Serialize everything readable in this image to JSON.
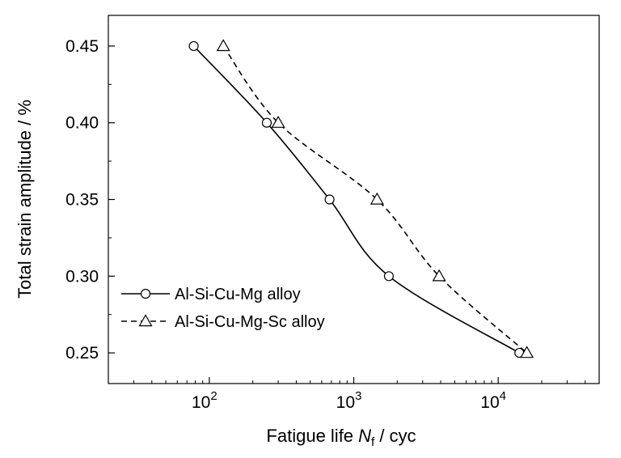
{
  "chart_data": {
    "type": "scatter",
    "x_scale": "log",
    "xlim": [
      20,
      50000
    ],
    "ylim": [
      0.23,
      0.47
    ],
    "x_major_ticks": [
      {
        "value": 100,
        "base": "10",
        "exp": "2"
      },
      {
        "value": 1000,
        "base": "10",
        "exp": "3"
      },
      {
        "value": 10000,
        "base": "10",
        "exp": "4"
      }
    ],
    "y_ticks": [
      {
        "value": 0.25,
        "label": "0.25"
      },
      {
        "value": 0.3,
        "label": "0.30"
      },
      {
        "value": 0.35,
        "label": "0.35"
      },
      {
        "value": 0.4,
        "label": "0.40"
      },
      {
        "value": 0.45,
        "label": "0.45"
      }
    ],
    "xlabel": {
      "prefix": "Fatigue life ",
      "var": "N",
      "sub": "f",
      "suffix": " / cyc"
    },
    "ylabel": "Total strain amplitude / %",
    "grid": false,
    "legend_position": "bottom-left",
    "series": [
      {
        "name": "Al-Si-Cu-Mg alloy",
        "marker": "circle",
        "line": "solid",
        "points": [
          {
            "x": 78,
            "y": 0.45
          },
          {
            "x": 250,
            "y": 0.4
          },
          {
            "x": 680,
            "y": 0.35
          },
          {
            "x": 1750,
            "y": 0.3
          },
          {
            "x": 14000,
            "y": 0.25
          }
        ]
      },
      {
        "name": "Al-Si-Cu-Mg-Sc alloy",
        "marker": "triangle",
        "line": "dashed",
        "points": [
          {
            "x": 125,
            "y": 0.45
          },
          {
            "x": 300,
            "y": 0.4
          },
          {
            "x": 1450,
            "y": 0.35
          },
          {
            "x": 3900,
            "y": 0.3
          },
          {
            "x": 15800,
            "y": 0.25
          }
        ]
      }
    ]
  }
}
